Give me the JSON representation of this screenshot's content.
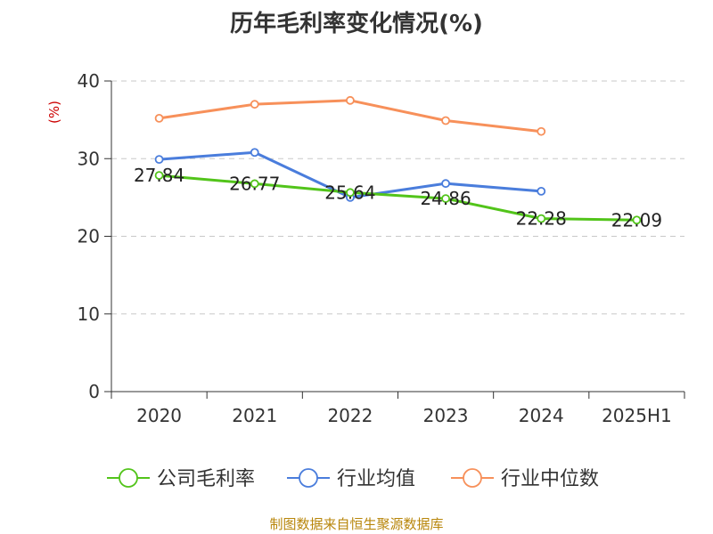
{
  "chart_data": {
    "type": "line",
    "title": "历年毛利率变化情况(%)",
    "ylabel": "(%)",
    "xlabel": "",
    "categories": [
      "2020",
      "2021",
      "2022",
      "2023",
      "2024",
      "2025H1"
    ],
    "ylim": [
      0,
      40
    ],
    "yticks": [
      0,
      10,
      20,
      30,
      40
    ],
    "grid": true,
    "legend_position": "bottom",
    "series": [
      {
        "name": "公司毛利率",
        "color": "#52c41a",
        "values": [
          27.84,
          26.77,
          25.64,
          24.86,
          22.28,
          22.09
        ],
        "labels": [
          "27.84",
          "26.77",
          "25.64",
          "24.86",
          "22.28",
          "22.09"
        ]
      },
      {
        "name": "行业均值",
        "color": "#4a7ddc",
        "values": [
          29.9,
          30.8,
          25.0,
          26.8,
          25.8,
          null
        ]
      },
      {
        "name": "行业中位数",
        "color": "#f7905a",
        "values": [
          35.2,
          37.0,
          37.5,
          34.9,
          33.5,
          null
        ]
      }
    ]
  },
  "footer": {
    "source": "制图数据来自恒生聚源数据库"
  }
}
